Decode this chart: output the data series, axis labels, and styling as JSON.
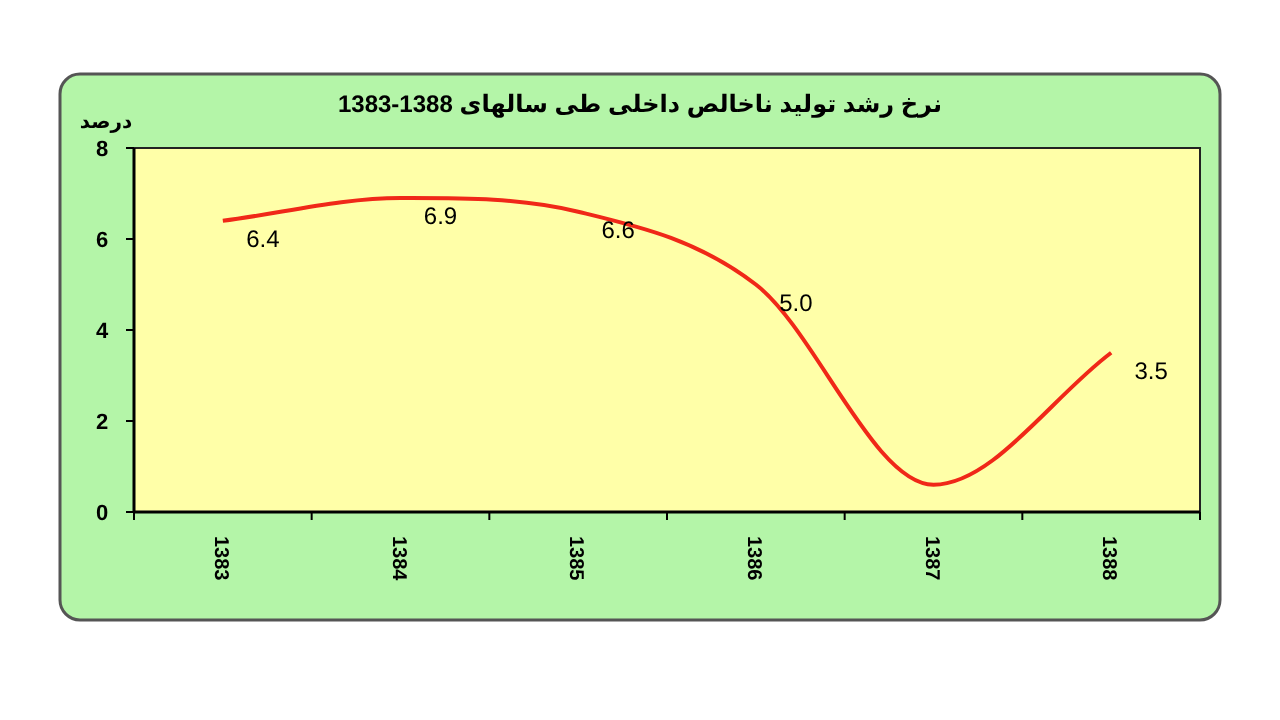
{
  "chart_data": {
    "type": "line",
    "title": "نرخ رشد تولید ناخالص داخلی طی سالهای 1388-1383",
    "ylabel": "درصد",
    "categories": [
      "1383",
      "1384",
      "1385",
      "1386",
      "1387",
      "1388"
    ],
    "series": [
      {
        "color": "#f02818",
        "values": [
          6.4,
          6.9,
          6.6,
          5.0,
          0.6,
          3.5
        ],
        "value_labels": [
          "6.4",
          "6.9",
          "6.6",
          "5.0",
          null,
          "3.5"
        ]
      }
    ],
    "ylim": [
      0,
      8
    ],
    "yticks": [
      0,
      2,
      4,
      6,
      8
    ]
  }
}
